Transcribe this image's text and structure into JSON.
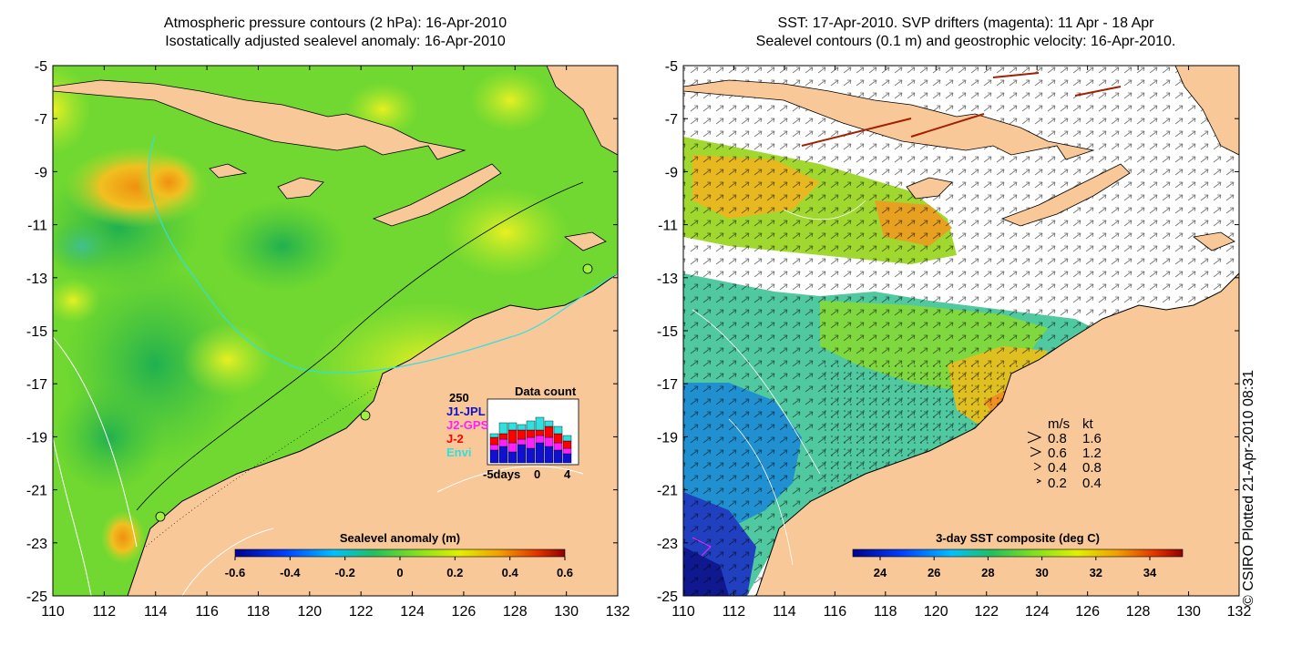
{
  "left_panel": {
    "title_line1": "Atmospheric pressure contours (2 hPa): 16-Apr-2010",
    "title_line2": "Isostatically adjusted sealevel anomaly: 16-Apr-2010",
    "y_ticks": [
      "-5",
      "-7",
      "-9",
      "-11",
      "-13",
      "-15",
      "-17",
      "-19",
      "-21",
      "-23",
      "-25"
    ],
    "x_ticks": [
      "110",
      "112",
      "114",
      "116",
      "118",
      "120",
      "122",
      "124",
      "126",
      "128",
      "130",
      "132"
    ],
    "colorbar": {
      "label": "Sealevel anomaly (m)",
      "ticks": [
        "-0.6",
        "-0.4",
        "-0.2",
        "0",
        "0.2",
        "0.4",
        "0.6"
      ]
    },
    "data_count": {
      "title": "Data count",
      "ymax": "250",
      "legend": [
        {
          "label": "J1-JPL",
          "color": "#1010d0"
        },
        {
          "label": "J2-GPS",
          "color": "#ff20ff"
        },
        {
          "label": "J-2",
          "color": "#ff0000"
        },
        {
          "label": "Envi",
          "color": "#30e0e0"
        }
      ],
      "x_ticks": [
        "-5days",
        "0",
        "4"
      ]
    }
  },
  "right_panel": {
    "title_line1": "SST: 17-Apr-2010. SVP drifters (magenta): 11 Apr - 18 Apr",
    "title_line2": "Sealevel contours (0.1 m) and geostrophic velocity: 16-Apr-2010.",
    "y_ticks": [
      "-5",
      "-7",
      "-9",
      "-11",
      "-13",
      "-15",
      "-17",
      "-19",
      "-21",
      "-23",
      "-25"
    ],
    "x_ticks": [
      "110",
      "112",
      "114",
      "116",
      "118",
      "120",
      "122",
      "124",
      "126",
      "128",
      "130",
      "132"
    ],
    "colorbar": {
      "label": "3-day SST composite (deg C)",
      "ticks": [
        "24",
        "26",
        "28",
        "30",
        "32",
        "34"
      ]
    },
    "velocity_legend": {
      "header_ms": "m/s",
      "header_kt": "kt",
      "rows": [
        {
          "ms": "0.8",
          "kt": "1.6"
        },
        {
          "ms": "0.6",
          "kt": "1.2"
        },
        {
          "ms": "0.4",
          "kt": "0.8"
        },
        {
          "ms": "0.2",
          "kt": "0.4"
        }
      ]
    }
  },
  "credit": "© CSIRO Plotted 21-Apr-2010 08:31",
  "colors": {
    "land": "#f8c898",
    "sea_green": "#60d030",
    "sea_anomaly_high": "#f09010",
    "sst_warm": "#f0a020",
    "sst_cool": "#2040c0"
  }
}
